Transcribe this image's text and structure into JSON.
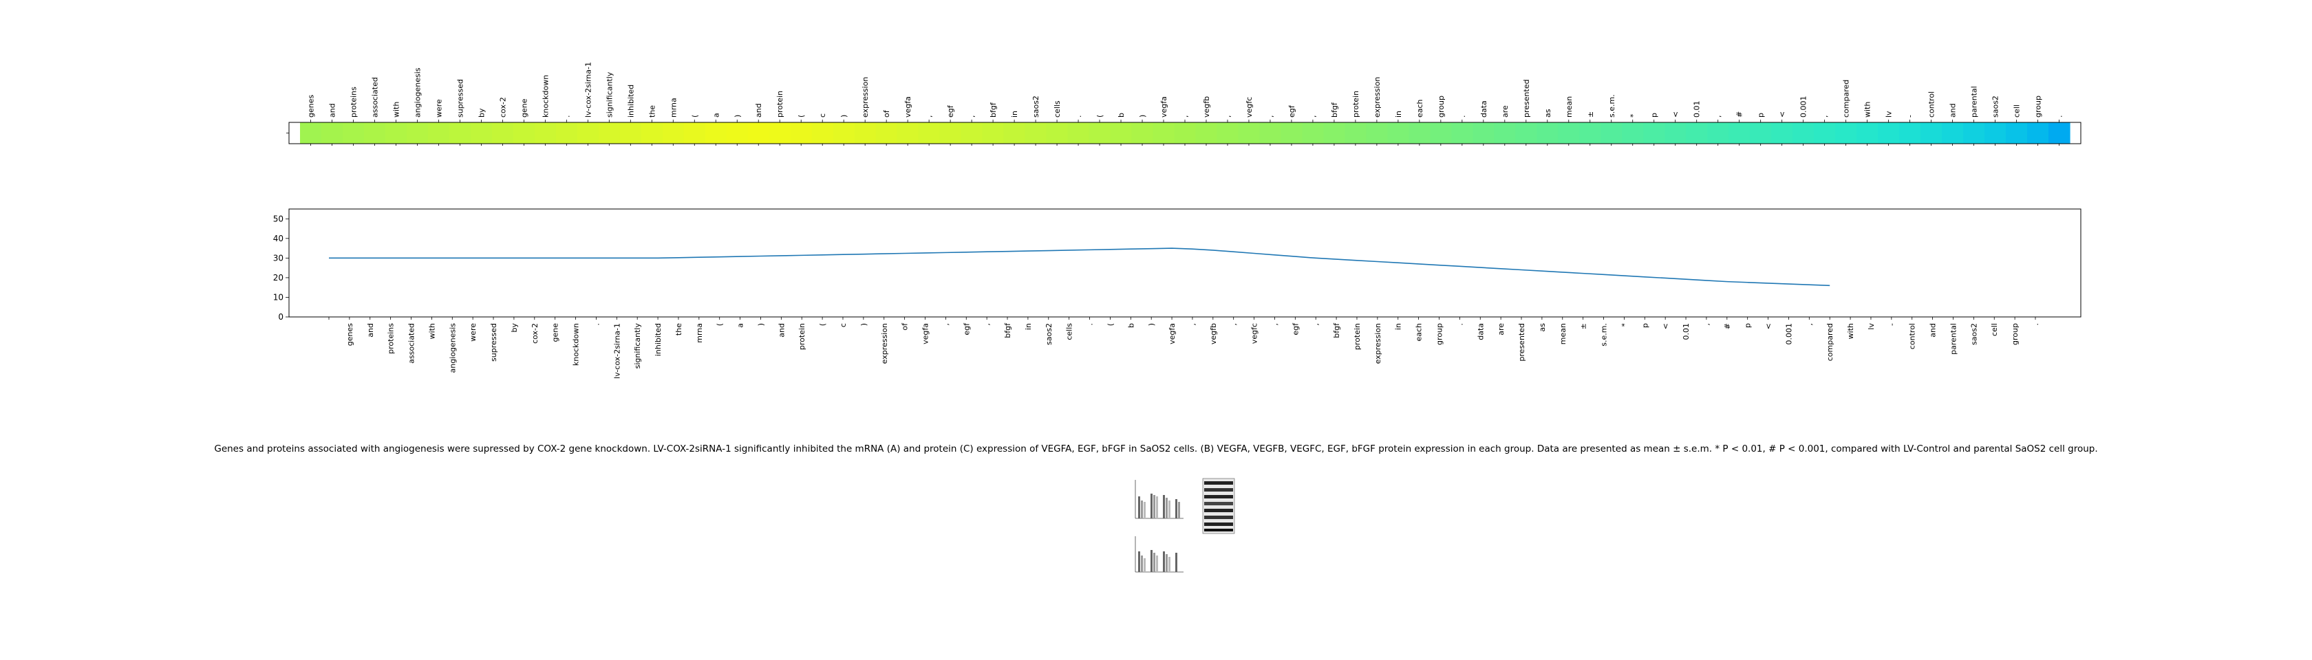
{
  "caption": "Genes and proteins associated with angiogenesis were supressed by COX-2 gene knockdown. LV-COX-2siRNA-1 significantly inhibited the mRNA (A) and protein (C) expression of VEGFA, EGF, bFGF in SaOS2 cells. (B) VEGFA, VEGFB, VEGFC, EGF, bFGF protein expression in each group. Data are presented as mean ± s.e.m. * P < 0.01, # P < 0.001, compared with LV-Control and parental SaOS2 cell group.",
  "chart_data": [
    {
      "type": "heatmap",
      "colormap": "jet-like (green to yellow to cyan to blue)",
      "tokens": [
        "genes",
        "and",
        "proteins",
        "associated",
        "with",
        "angiogenesis",
        "were",
        "supressed",
        "by",
        "cox-2",
        "gene",
        "knockdown",
        ".",
        "lv-cox-2sirna-1",
        "significantly",
        "inhibited",
        "the",
        "mrna",
        "(",
        "a",
        ")",
        "and",
        "protein",
        "(",
        "c",
        ")",
        "expression",
        "of",
        "vegfa",
        ",",
        "egf",
        ",",
        "bfgf",
        "in",
        "saos2",
        "cells",
        ".",
        "(",
        "b",
        ")",
        "vegfa",
        ",",
        "vegfb",
        ",",
        "vegfc",
        ",",
        "egf",
        ",",
        "bfgf",
        "protein",
        "expression",
        "in",
        "each",
        "group",
        ".",
        "data",
        "are",
        "presented",
        "as",
        "mean",
        "±",
        "s.e.m.",
        "*",
        "p",
        "<",
        "0.01",
        ",",
        "#",
        "p",
        "<",
        "0.001",
        ",",
        "compared",
        "with",
        "lv",
        "-",
        "control",
        "and",
        "parental",
        "saos2",
        "cell",
        "group",
        "."
      ],
      "colors": [
        "#a0f350",
        "#a4f34c",
        "#a8f44a",
        "#acf447",
        "#b0f544",
        "#b4f542",
        "#b8f53f",
        "#bcf63c",
        "#c0f63a",
        "#c4f637",
        "#c8f734",
        "#ccf732",
        "#d0f72f",
        "#d4f82c",
        "#d8f82a",
        "#dcf827",
        "#e0f924",
        "#e4f922",
        "#e8f91f",
        "#ecfa1c",
        "#eefa1a",
        "#f0fa18",
        "#eefa1a",
        "#ecf91c",
        "#e8f91f",
        "#e4f922",
        "#e0f824",
        "#dcf827",
        "#d8f82a",
        "#d4f82c",
        "#d0f72f",
        "#ccf732",
        "#c8f734",
        "#c4f637",
        "#c0f63a",
        "#bcf63c",
        "#b8f53f",
        "#b4f542",
        "#b0f544",
        "#acf447",
        "#a8f44a",
        "#a4f34c",
        "#a0f350",
        "#9cf354",
        "#98f358",
        "#94f25c",
        "#90f260",
        "#8cf264",
        "#88f268",
        "#84f16c",
        "#80f170",
        "#7cf174",
        "#78f078",
        "#74f07c",
        "#70f080",
        "#6cef84",
        "#68ef88",
        "#64ef8c",
        "#60ee90",
        "#5cee94",
        "#58ee98",
        "#54ed9c",
        "#50eda0",
        "#4ceda4",
        "#48eca8",
        "#44ecac",
        "#40ebb0",
        "#3cebb4",
        "#38eab8",
        "#34eabc",
        "#30e9c0",
        "#2ce9c4",
        "#28e8c8",
        "#24e6cc",
        "#20e3d0",
        "#1ce0d4",
        "#18dbd8",
        "#14d6dc",
        "#10d0e0",
        "#0ccae4",
        "#08c2e8",
        "#04b8ec",
        "#00aaf0"
      ],
      "yticks": [
        ""
      ]
    },
    {
      "type": "line",
      "x": [
        "",
        "genes",
        "and",
        "proteins",
        "associated",
        "with",
        "angiogenesis",
        "were",
        "supressed",
        "by",
        "cox-2",
        "gene",
        "knockdown",
        ".",
        "lv-cox-2sirna-1",
        "significantly",
        "inhibited",
        "the",
        "mrna",
        "(",
        "a",
        ")",
        "and",
        "protein",
        "(",
        "c",
        ")",
        "expression",
        "of",
        "vegfa",
        ",",
        "egf",
        ",",
        "bfgf",
        "in",
        "saos2",
        "cells",
        ".",
        "(",
        "b",
        ")",
        "vegfa",
        ",",
        "vegfb",
        ",",
        "vegfc",
        ",",
        "egf",
        ",",
        "bfgf",
        "protein",
        "expression",
        "in",
        "each",
        "group",
        ".",
        "data",
        "are",
        "presented",
        "as",
        "mean",
        "±",
        "s.e.m.",
        "*",
        "p",
        "<",
        "0.01",
        ",",
        "#",
        "p",
        "<",
        "0.001",
        ",",
        "compared",
        "with",
        "lv",
        "-",
        "control",
        "and",
        "parental",
        "saos2",
        "cell",
        "group",
        "."
      ],
      "values": [
        30,
        30,
        30,
        30,
        30,
        30,
        30,
        30,
        30,
        30,
        30,
        30,
        30,
        30,
        30,
        30,
        30,
        30.2,
        30.4,
        30.6,
        30.8,
        31,
        31.2,
        31.4,
        31.6,
        31.8,
        32,
        32.2,
        32.4,
        32.6,
        32.8,
        33,
        33.2,
        33.4,
        33.6,
        33.8,
        34,
        34.2,
        34.4,
        34.6,
        34.8,
        35,
        34.6,
        34,
        33.2,
        32.4,
        31.6,
        30.8,
        30,
        29.4,
        28.8,
        28.2,
        27.6,
        27,
        26.4,
        25.8,
        25.2,
        24.6,
        24,
        23.4,
        22.8,
        22.2,
        21.6,
        21,
        20.4,
        19.8,
        19.2,
        18.6,
        18,
        17.6,
        17.2,
        16.8,
        16.4,
        16,
        null,
        null,
        null,
        null,
        null,
        null,
        null,
        null,
        null,
        null
      ],
      "yticks": [
        "0",
        "10",
        "20",
        "30",
        "40",
        "50"
      ],
      "ylim": [
        0,
        55
      ],
      "line_color": "#1f77b4"
    }
  ]
}
